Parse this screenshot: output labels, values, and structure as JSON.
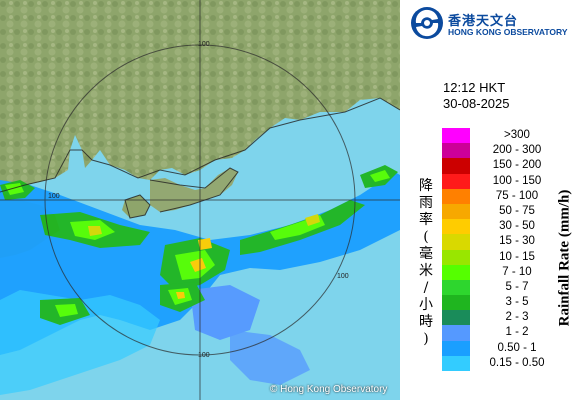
{
  "map": {
    "copyright": "© Hong Kong Observatory",
    "range_labels": [
      "100",
      "100",
      "100",
      "100"
    ],
    "colors": {
      "sea": "#7ed4ec",
      "land": "#8fa86c",
      "rings": "#2a2a2a"
    }
  },
  "logo": {
    "zh": "香港天文台",
    "en": "HONG KONG OBSERVATORY",
    "color": "#0b4a9e"
  },
  "time": {
    "hkt": "12:12 HKT",
    "date": "30-08-2025"
  },
  "legend": {
    "zh_title": [
      "降",
      "雨",
      "率",
      "(",
      "毫",
      "米",
      "/",
      "小",
      "時",
      ")"
    ],
    "en_title": "Rainfall Rate (mm/h)",
    "items": [
      {
        "label": ">300",
        "color": "#ff00ff"
      },
      {
        "label": "200 - 300",
        "color": "#cc0099"
      },
      {
        "label": "150 - 200",
        "color": "#cc0000"
      },
      {
        "label": "100 - 150",
        "color": "#ff1a1a"
      },
      {
        "label": "75 - 100",
        "color": "#ff8000"
      },
      {
        "label": "50 - 75",
        "color": "#f7a800"
      },
      {
        "label": "30 - 50",
        "color": "#ffcc00"
      },
      {
        "label": "15 - 30",
        "color": "#d9d900"
      },
      {
        "label": "10 - 15",
        "color": "#99e600"
      },
      {
        "label": "7 - 10",
        "color": "#55ff00"
      },
      {
        "label": "5 - 7",
        "color": "#2ed62e"
      },
      {
        "label": "3 - 5",
        "color": "#1fb51f"
      },
      {
        "label": "2 - 3",
        "color": "#1a8c5a"
      },
      {
        "label": "1 - 2",
        "color": "#5599ff"
      },
      {
        "label": "0.50 - 1",
        "color": "#1a9fff"
      },
      {
        "label": "0.15 - 0.50",
        "color": "#33ccff"
      }
    ]
  }
}
